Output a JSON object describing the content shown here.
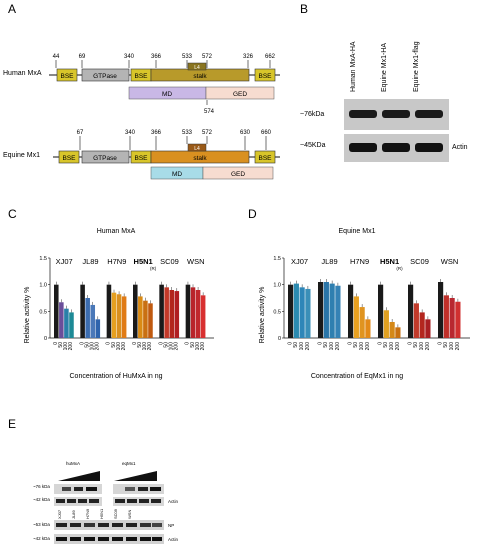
{
  "panels": {
    "A": {
      "letter": "A",
      "human": {
        "label": "Human MxA",
        "positions": [
          "44",
          "69",
          "340",
          "366",
          "533",
          "572",
          "326",
          "662"
        ],
        "domains": [
          "BSE",
          "GTPase",
          "BSE",
          "stalk",
          "BSE"
        ],
        "loop_label": "L4",
        "md": "MD",
        "ged": "GED",
        "below_pos": "574"
      },
      "equine": {
        "label": "Equine Mx1",
        "positions": [
          "67",
          "340",
          "366",
          "533",
          "572",
          "630",
          "660"
        ],
        "domains": [
          "BSE",
          "GTPase",
          "BSE",
          "stalk",
          "BSE"
        ],
        "loop_label": "L4",
        "md": "MD",
        "ged": "GED"
      }
    },
    "B": {
      "letter": "B",
      "lanes": [
        "Human MxA-HA",
        "Equine Mx1-HA",
        "Equine Mx1-flag"
      ],
      "row_labels": [
        "~76kDa",
        "~45KDa"
      ],
      "right_label": "Actin"
    },
    "C": {
      "letter": "C",
      "title": "Human MxA",
      "strains": [
        "XJ07",
        "JL89",
        "H7N9",
        "H5N1",
        "SC09",
        "WSN"
      ],
      "h5n1_sub": "(R)",
      "ylabel": "Relative activity %",
      "xlabel": "Concentration of HuMxA in ng",
      "yticks": [
        "0",
        "0.5",
        "1.0",
        "1.5"
      ],
      "xticks": [
        "0",
        "50",
        "100",
        "200"
      ]
    },
    "D": {
      "letter": "D",
      "title": "Equine Mx1",
      "strains": [
        "XJ07",
        "JL89",
        "H7N9",
        "H5N1",
        "SC09",
        "WSN"
      ],
      "h5n1_sub": "(R)",
      "ylabel": "Relative activity %",
      "xlabel": "Concentration of EqMx1 in ng",
      "yticks": [
        "0",
        "0.5",
        "1.0",
        "1.5"
      ],
      "xticks": [
        "0",
        "50",
        "100",
        "200"
      ]
    },
    "E": {
      "letter": "E",
      "hu_label": "huMxA",
      "eq_label": "eqMx1",
      "kda_top": [
        "~76 kDa",
        "~42 kDa"
      ],
      "kda_bottom": [
        "~53 kDa",
        "~42 kDa"
      ],
      "actin": "Actin",
      "np": "NP",
      "strains": [
        "XJ07",
        "JL89",
        "H7N9",
        "H5N1",
        "SC09",
        "WSN"
      ]
    }
  },
  "chart_data": [
    {
      "type": "bar",
      "title": "Human MxA",
      "xlabel": "Concentration of HuMxA in ng",
      "ylabel": "Relative activity %",
      "ylim": [
        0,
        1.5
      ],
      "groups": [
        "XJ07",
        "JL89",
        "H7N9",
        "H5N1",
        "SC09",
        "WSN"
      ],
      "categories": [
        "0",
        "50",
        "100",
        "200"
      ],
      "series": [
        {
          "group": "XJ07",
          "values": [
            1.0,
            0.67,
            0.55,
            0.48
          ],
          "colors": [
            "#1a1a1a",
            "#6a4e9a",
            "#2a7fa8",
            "#1d8a96"
          ]
        },
        {
          "group": "JL89",
          "values": [
            1.0,
            0.75,
            0.62,
            0.35
          ],
          "colors": [
            "#1a1a1a",
            "#3c6db0",
            "#4a78b8",
            "#2e64ad"
          ]
        },
        {
          "group": "H7N9",
          "values": [
            1.0,
            0.85,
            0.82,
            0.78
          ],
          "colors": [
            "#1a1a1a",
            "#e6a020",
            "#d99020",
            "#e07b16"
          ]
        },
        {
          "group": "H5N1",
          "values": [
            1.0,
            0.78,
            0.7,
            0.65
          ],
          "colors": [
            "#1a1a1a",
            "#d98a14",
            "#c97012",
            "#c05a10"
          ]
        },
        {
          "group": "SC09",
          "values": [
            1.0,
            0.95,
            0.9,
            0.88
          ],
          "colors": [
            "#1a1a1a",
            "#c23a2a",
            "#b3261e",
            "#b01e22"
          ]
        },
        {
          "group": "WSN",
          "values": [
            1.0,
            0.95,
            0.9,
            0.8
          ],
          "colors": [
            "#1a1a1a",
            "#b8242a",
            "#c0282c",
            "#d83030"
          ]
        }
      ]
    },
    {
      "type": "bar",
      "title": "Equine Mx1",
      "xlabel": "Concentration of EqMx1 in ng",
      "ylabel": "Relative activity %",
      "ylim": [
        0,
        1.5
      ],
      "groups": [
        "XJ07",
        "JL89",
        "H7N9",
        "H5N1",
        "SC09",
        "WSN"
      ],
      "categories": [
        "0",
        "50",
        "100",
        "200"
      ],
      "series": [
        {
          "group": "XJ07",
          "values": [
            1.0,
            1.02,
            0.95,
            0.92
          ],
          "colors": [
            "#1a1a1a",
            "#2b8ab0",
            "#2e86b8",
            "#3a8fb8"
          ]
        },
        {
          "group": "JL89",
          "values": [
            1.05,
            1.05,
            1.02,
            0.98
          ],
          "colors": [
            "#1a1a1a",
            "#2a75a8",
            "#2f7fb0",
            "#3582b5"
          ]
        },
        {
          "group": "H7N9",
          "values": [
            1.0,
            0.78,
            0.58,
            0.35
          ],
          "colors": [
            "#1a1a1a",
            "#e8a020",
            "#e09420",
            "#e38a18"
          ]
        },
        {
          "group": "H5N1",
          "values": [
            1.0,
            0.52,
            0.3,
            0.2
          ],
          "colors": [
            "#1a1a1a",
            "#e0a020",
            "#d48818",
            "#c87010"
          ]
        },
        {
          "group": "SC09",
          "values": [
            1.0,
            0.65,
            0.48,
            0.35
          ],
          "colors": [
            "#1a1a1a",
            "#c23a2a",
            "#b3261e",
            "#a91e22"
          ]
        },
        {
          "group": "WSN",
          "values": [
            1.05,
            0.8,
            0.75,
            0.68
          ],
          "colors": [
            "#1a1a1a",
            "#c0302a",
            "#b82830",
            "#d03030"
          ]
        }
      ]
    }
  ]
}
